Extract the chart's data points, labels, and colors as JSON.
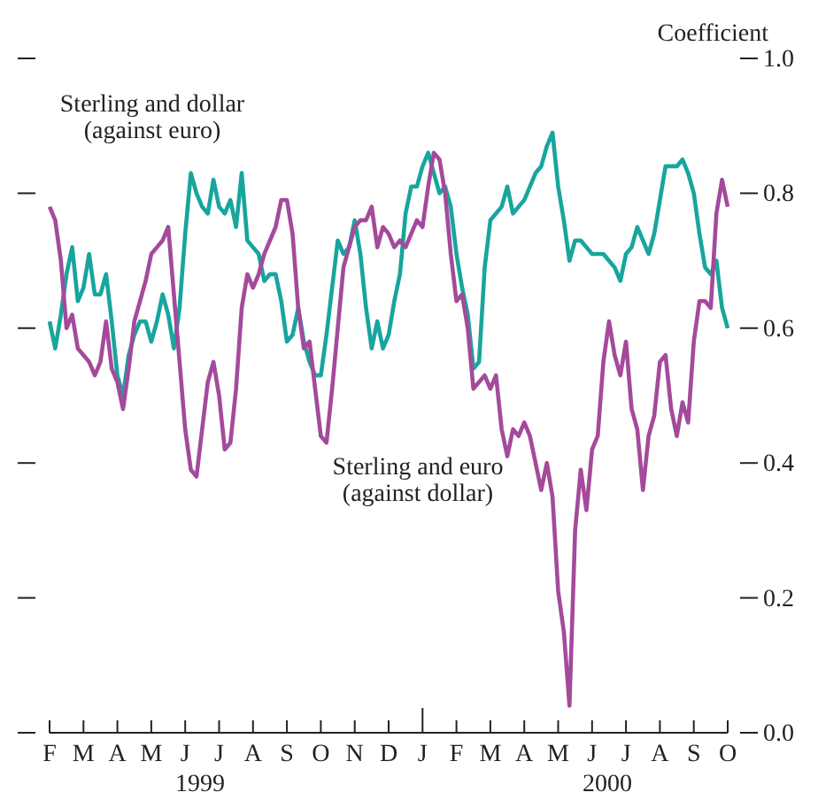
{
  "chart_data": {
    "type": "line",
    "ylabel": "Coefficient",
    "categories": [
      "F",
      null,
      null,
      null,
      null,
      null,
      "M",
      null,
      null,
      null,
      null,
      null,
      "A",
      null,
      null,
      null,
      null,
      null,
      "M",
      null,
      null,
      null,
      null,
      null,
      "J",
      null,
      null,
      null,
      null,
      null,
      "J",
      null,
      null,
      null,
      null,
      null,
      "A",
      null,
      null,
      null,
      null,
      null,
      "S",
      null,
      null,
      null,
      null,
      null,
      "O",
      null,
      null,
      null,
      null,
      null,
      "N",
      null,
      null,
      null,
      null,
      null,
      "D",
      null,
      null,
      null,
      null,
      null,
      "J",
      null,
      null,
      null,
      null,
      null,
      "F",
      null,
      null,
      null,
      null,
      null,
      "M",
      null,
      null,
      null,
      null,
      null,
      "A",
      null,
      null,
      null,
      null,
      null,
      "M",
      null,
      null,
      null,
      null,
      null,
      "J",
      null,
      null,
      null,
      null,
      null,
      "J",
      null,
      null,
      null,
      null,
      null,
      "A",
      null,
      null,
      null,
      null,
      null,
      "S",
      null,
      null,
      null,
      null,
      null,
      "O"
    ],
    "ylim": [
      0,
      1
    ],
    "yticks": [
      {
        "value": 0,
        "label": "0.0"
      },
      {
        "value": 0.2,
        "label": "0.2"
      },
      {
        "value": 0.4,
        "label": "0.4"
      },
      {
        "value": 0.6,
        "label": "0.6"
      },
      {
        "value": 0.8,
        "label": "0.8"
      },
      {
        "value": 1,
        "label": "1.0"
      }
    ],
    "annotations": [
      "1999",
      "2000"
    ],
    "grid": false,
    "legend": false,
    "line_style": "solid",
    "marker": "none",
    "series": [
      {
        "name": "Sterling and dollar (against euro)",
        "color": "#17a59e",
        "values": [
          0.61,
          0.57,
          0.62,
          0.68,
          0.72,
          0.64,
          0.66,
          0.71,
          0.65,
          0.65,
          0.68,
          0.61,
          0.53,
          0.5,
          0.56,
          0.59,
          0.61,
          0.61,
          0.58,
          0.61,
          0.65,
          0.62,
          0.57,
          0.63,
          0.74,
          0.83,
          0.8,
          0.78,
          0.77,
          0.82,
          0.78,
          0.77,
          0.79,
          0.75,
          0.83,
          0.73,
          0.72,
          0.71,
          0.67,
          0.68,
          0.68,
          0.64,
          0.58,
          0.59,
          0.63,
          0.58,
          0.55,
          0.53,
          0.53,
          0.59,
          0.66,
          0.73,
          0.71,
          0.72,
          0.76,
          0.71,
          0.63,
          0.57,
          0.61,
          0.57,
          0.59,
          0.64,
          0.68,
          0.77,
          0.81,
          0.81,
          0.84,
          0.86,
          0.83,
          0.8,
          0.81,
          0.78,
          0.71,
          0.66,
          0.62,
          0.54,
          0.55,
          0.69,
          0.76,
          0.77,
          0.78,
          0.81,
          0.77,
          0.78,
          0.79,
          0.81,
          0.83,
          0.84,
          0.87,
          0.89,
          0.81,
          0.76,
          0.7,
          0.73,
          0.73,
          0.72,
          0.71,
          0.71,
          0.71,
          0.7,
          0.69,
          0.67,
          0.71,
          0.72,
          0.75,
          0.73,
          0.71,
          0.74,
          0.79,
          0.84,
          0.84,
          0.84,
          0.85,
          0.83,
          0.8,
          0.74,
          0.69,
          0.68,
          0.7,
          0.63,
          0.6
        ]
      },
      {
        "name": "Sterling and euro (against dollar)",
        "color": "#a44a9b",
        "values": [
          0.78,
          0.76,
          0.7,
          0.6,
          0.62,
          0.57,
          0.56,
          0.55,
          0.53,
          0.55,
          0.61,
          0.54,
          0.52,
          0.48,
          0.54,
          0.61,
          0.64,
          0.67,
          0.71,
          0.72,
          0.73,
          0.75,
          0.65,
          0.55,
          0.45,
          0.39,
          0.38,
          0.45,
          0.52,
          0.55,
          0.5,
          0.42,
          0.43,
          0.51,
          0.63,
          0.68,
          0.66,
          0.68,
          0.71,
          0.73,
          0.75,
          0.79,
          0.79,
          0.74,
          0.63,
          0.57,
          0.58,
          0.51,
          0.44,
          0.43,
          0.51,
          0.6,
          0.69,
          0.72,
          0.75,
          0.76,
          0.76,
          0.78,
          0.72,
          0.75,
          0.74,
          0.72,
          0.73,
          0.72,
          0.74,
          0.76,
          0.75,
          0.81,
          0.86,
          0.85,
          0.8,
          0.71,
          0.64,
          0.65,
          0.6,
          0.51,
          0.52,
          0.53,
          0.51,
          0.53,
          0.45,
          0.41,
          0.45,
          0.44,
          0.46,
          0.44,
          0.4,
          0.36,
          0.4,
          0.35,
          0.21,
          0.15,
          0.04,
          0.3,
          0.39,
          0.33,
          0.42,
          0.44,
          0.55,
          0.61,
          0.56,
          0.53,
          0.58,
          0.48,
          0.45,
          0.36,
          0.44,
          0.47,
          0.55,
          0.56,
          0.48,
          0.44,
          0.49,
          0.46,
          0.58,
          0.64,
          0.64,
          0.63,
          0.77,
          0.82,
          0.78
        ]
      }
    ]
  }
}
